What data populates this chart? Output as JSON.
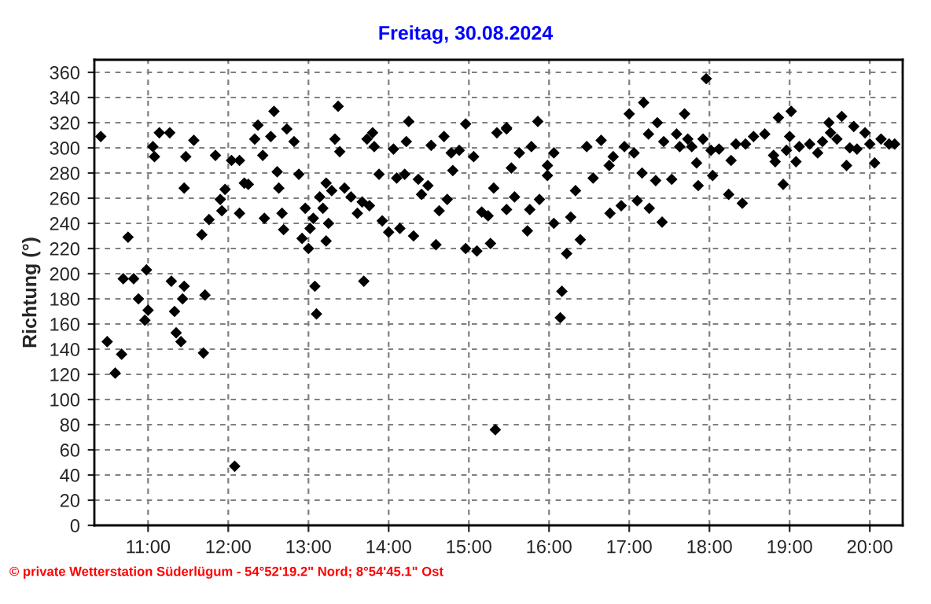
{
  "chart_data": {
    "type": "scatter",
    "title": "Freitag, 30.08.2024",
    "ylabel": "Richtung (°)",
    "annotations": [
      "© private Wetterstation Süderlügum - 54°52'19.2\" Nord; 8°54'45.1\" Ost"
    ],
    "xlim": [
      10.33,
      20.41
    ],
    "ylim": [
      0,
      370
    ],
    "xticks": [
      {
        "value": 11,
        "label": "11:00"
      },
      {
        "value": 12,
        "label": "12:00"
      },
      {
        "value": 13,
        "label": "13:00"
      },
      {
        "value": 14,
        "label": "14:00"
      },
      {
        "value": 15,
        "label": "15:00"
      },
      {
        "value": 16,
        "label": "16:00"
      },
      {
        "value": 17,
        "label": "17:00"
      },
      {
        "value": 18,
        "label": "18:00"
      },
      {
        "value": 19,
        "label": "19:00"
      },
      {
        "value": 20,
        "label": "20:00"
      }
    ],
    "yticks": [
      0,
      20,
      40,
      60,
      80,
      100,
      120,
      140,
      160,
      180,
      200,
      220,
      240,
      260,
      280,
      300,
      320,
      340,
      360
    ],
    "grid": true,
    "marker": "diamond",
    "legend": false,
    "series": [
      {
        "color": "#000000",
        "x": [
          10.41,
          10.49,
          10.59,
          10.67,
          10.69,
          10.75,
          10.82,
          10.88,
          10.96,
          10.98,
          11.0,
          11.06,
          11.08,
          11.14,
          11.27,
          11.29,
          11.33,
          11.35,
          11.41,
          11.43,
          11.45,
          11.45,
          11.47,
          11.57,
          11.67,
          11.71,
          11.69,
          11.76,
          11.84,
          11.9,
          11.92,
          11.96,
          12.04,
          12.08,
          12.14,
          12.14,
          12.2,
          12.25,
          12.33,
          12.37,
          12.43,
          12.45,
          12.53,
          12.57,
          12.61,
          12.63,
          12.67,
          12.69,
          12.73,
          12.82,
          12.88,
          12.92,
          12.96,
          13.0,
          13.02,
          13.06,
          13.08,
          13.1,
          13.14,
          13.18,
          13.22,
          13.22,
          13.25,
          13.29,
          13.33,
          13.37,
          13.39,
          13.45,
          13.53,
          13.61,
          13.67,
          13.69,
          13.73,
          13.76,
          13.8,
          13.82,
          13.88,
          13.92,
          14.0,
          14.06,
          14.1,
          14.14,
          14.2,
          14.22,
          14.25,
          14.31,
          14.37,
          14.41,
          14.49,
          14.53,
          14.59,
          14.63,
          14.69,
          14.73,
          14.78,
          14.8,
          14.88,
          14.96,
          14.96,
          15.06,
          15.1,
          15.16,
          15.24,
          15.27,
          15.31,
          15.33,
          15.35,
          15.47,
          15.47,
          15.47,
          15.53,
          15.57,
          15.63,
          15.73,
          15.76,
          15.78,
          15.86,
          15.88,
          15.98,
          15.98,
          16.06,
          16.06,
          16.14,
          16.16,
          16.22,
          16.27,
          16.33,
          16.39,
          16.47,
          16.55,
          16.65,
          16.75,
          16.76,
          16.8,
          16.9,
          16.94,
          17.0,
          17.06,
          17.1,
          17.16,
          17.18,
          17.24,
          17.25,
          17.33,
          17.35,
          17.41,
          17.43,
          17.53,
          17.59,
          17.63,
          17.69,
          17.73,
          17.78,
          17.84,
          17.86,
          17.92,
          17.96,
          18.02,
          18.04,
          18.12,
          18.24,
          18.27,
          18.33,
          18.41,
          18.45,
          18.55,
          18.69,
          18.8,
          18.82,
          18.86,
          18.92,
          18.96,
          19.0,
          19.02,
          19.08,
          19.12,
          19.25,
          19.35,
          19.41,
          19.49,
          19.51,
          19.59,
          19.65,
          19.71,
          19.75,
          19.8,
          19.84,
          19.94,
          20.0,
          20.06,
          20.14,
          20.24,
          20.31
        ],
        "values": [
          309,
          146,
          121,
          136,
          196,
          229,
          196,
          180,
          163,
          203,
          171,
          301,
          293,
          312,
          312,
          194,
          170,
          153,
          146,
          180,
          190,
          268,
          293,
          306,
          231,
          183,
          137,
          243,
          294,
          259,
          250,
          267,
          290,
          47,
          248,
          290,
          272,
          271,
          307,
          318,
          294,
          244,
          309,
          329,
          281,
          268,
          248,
          235,
          315,
          305,
          279,
          228,
          252,
          220,
          236,
          244,
          190,
          168,
          261,
          252,
          226,
          272,
          240,
          266,
          307,
          333,
          297,
          268,
          261,
          248,
          257,
          194,
          307,
          254,
          312,
          301,
          279,
          242,
          233,
          299,
          276,
          236,
          279,
          305,
          321,
          230,
          275,
          263,
          270,
          302,
          223,
          250,
          309,
          259,
          296,
          282,
          298,
          220,
          319,
          293,
          218,
          249,
          246,
          224,
          268,
          76,
          312,
          316,
          251,
          315,
          284,
          261,
          296,
          234,
          251,
          301,
          321,
          259,
          286,
          278,
          296,
          240,
          165,
          186,
          216,
          245,
          266,
          227,
          301,
          276,
          306,
          286,
          248,
          293,
          254,
          301,
          327,
          296,
          258,
          280,
          336,
          311,
          252,
          274,
          320,
          241,
          305,
          275,
          311,
          301,
          327,
          307,
          301,
          288,
          270,
          307,
          355,
          298,
          278,
          299,
          263,
          290,
          303,
          256,
          303,
          309,
          311,
          294,
          289,
          324,
          271,
          298,
          309,
          329,
          289,
          301,
          303,
          296,
          305,
          320,
          312,
          307,
          325,
          286,
          300,
          317,
          299,
          312,
          303,
          288,
          307,
          303,
          303
        ]
      }
    ]
  }
}
